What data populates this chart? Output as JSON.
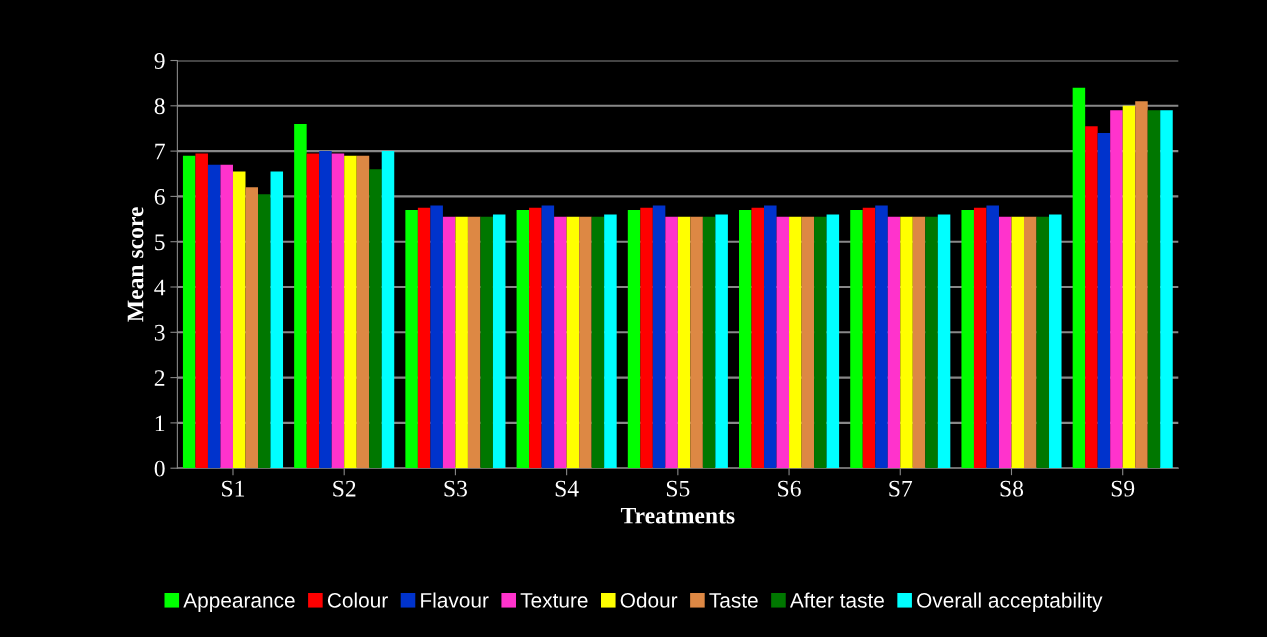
{
  "chart_data": {
    "type": "bar",
    "xlabel": "Treatments",
    "ylabel": "Mean score",
    "categories": [
      "S1",
      "S2",
      "S3",
      "S4",
      "S5",
      "S6",
      "S7",
      "S8",
      "S9"
    ],
    "ylim": [
      0,
      9
    ],
    "yticks": [
      0,
      1,
      2,
      3,
      4,
      5,
      6,
      7,
      8,
      9
    ],
    "grid": "y",
    "legend": "bottom",
    "series": [
      {
        "name": "Appearance",
        "color": "#00ff00",
        "values": [
          6.9,
          7.6,
          5.7,
          5.7,
          5.7,
          5.7,
          5.7,
          5.7,
          8.4
        ]
      },
      {
        "name": "Colour",
        "color": "#ff0000",
        "values": [
          6.95,
          6.95,
          5.75,
          5.75,
          5.75,
          5.75,
          5.75,
          5.75,
          7.55
        ]
      },
      {
        "name": "Flavour",
        "color": "#0033cc",
        "values": [
          6.7,
          7.0,
          5.8,
          5.8,
          5.8,
          5.8,
          5.8,
          5.8,
          7.4
        ]
      },
      {
        "name": "Texture",
        "color": "#ff33cc",
        "values": [
          6.7,
          6.95,
          5.55,
          5.55,
          5.55,
          5.55,
          5.55,
          5.55,
          7.9
        ]
      },
      {
        "name": "Odour",
        "color": "#ffff00",
        "values": [
          6.55,
          6.9,
          5.55,
          5.55,
          5.55,
          5.55,
          5.55,
          5.55,
          8.0
        ]
      },
      {
        "name": "Taste",
        "color": "#dd8844",
        "values": [
          6.2,
          6.9,
          5.55,
          5.55,
          5.55,
          5.55,
          5.55,
          5.55,
          8.1
        ]
      },
      {
        "name": "After taste",
        "color": "#007700",
        "values": [
          6.05,
          6.6,
          5.55,
          5.55,
          5.55,
          5.55,
          5.55,
          5.55,
          7.9
        ]
      },
      {
        "name": "Overall acceptability",
        "color": "#00ffff",
        "values": [
          6.55,
          7.0,
          5.6,
          5.6,
          5.6,
          5.6,
          5.6,
          5.6,
          7.9
        ]
      }
    ]
  }
}
